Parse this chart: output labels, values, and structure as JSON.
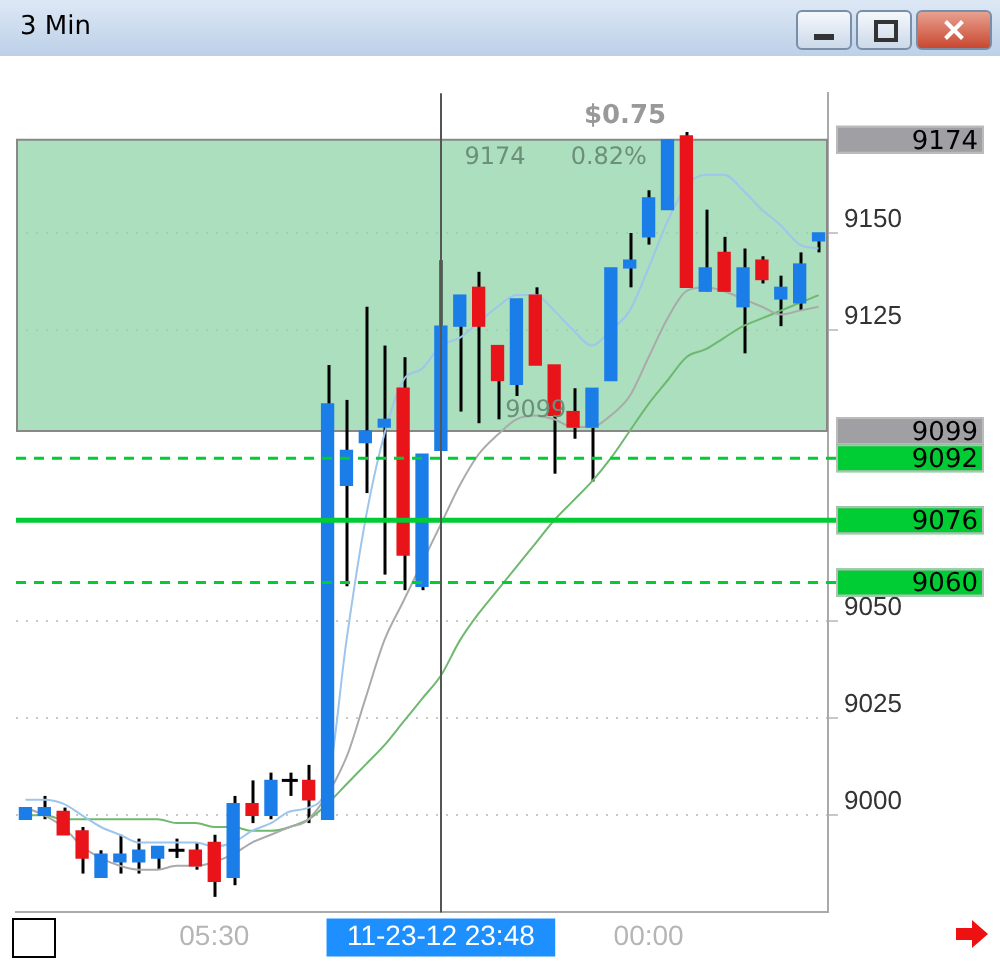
{
  "chart_data": {
    "type": "candlestick",
    "title": "3 Min",
    "categories": [
      null,
      null,
      null,
      null,
      null,
      null,
      null,
      null,
      null,
      null,
      "05:30",
      null,
      null,
      null,
      null,
      null,
      null,
      null,
      null,
      null,
      null,
      null,
      "11-23-12 23:48",
      null,
      null,
      null,
      null,
      null,
      null,
      null,
      null,
      null,
      null,
      "00:00",
      null,
      null,
      null,
      null,
      null,
      null,
      null,
      null,
      null
    ],
    "ohlc": [
      [
        8999,
        9002,
        8999,
        9002
      ],
      [
        9000,
        9005,
        8999,
        9002
      ],
      [
        9001,
        9002,
        8995,
        8995
      ],
      [
        8996,
        8997,
        8985,
        8989
      ],
      [
        8984,
        8991,
        8984,
        8990
      ],
      [
        8988,
        8995,
        8985,
        8990
      ],
      [
        8988,
        8994,
        8985,
        8991
      ],
      [
        8989,
        8992,
        8986,
        8992
      ],
      [
        8991,
        8994,
        8989,
        8991
      ],
      [
        8991,
        8993,
        8986,
        8987
      ],
      [
        8993,
        8995,
        8979,
        8983
      ],
      [
        8984,
        9005,
        8982,
        9003
      ],
      [
        9003,
        9009,
        8998,
        9000
      ],
      [
        9000,
        9011,
        8999,
        9009
      ],
      [
        9009,
        9011,
        9005,
        9009
      ],
      [
        9009,
        9013,
        8998,
        9004
      ],
      [
        8999,
        9116,
        8999,
        9106
      ],
      [
        9085,
        9107,
        9059,
        9094
      ],
      [
        9096,
        9131,
        9083,
        9099
      ],
      [
        9100,
        9121,
        9062,
        9102
      ],
      [
        9110,
        9118,
        9058,
        9067
      ],
      [
        9059,
        9093,
        9058,
        9093
      ],
      [
        9094,
        9143,
        9094,
        9126
      ],
      [
        9126,
        9134,
        9104,
        9134
      ],
      [
        9136,
        9140,
        9101,
        9126
      ],
      [
        9121,
        9121,
        9102,
        9112
      ],
      [
        9111,
        9133,
        9108,
        9133
      ],
      [
        9134,
        9136,
        9116,
        9116
      ],
      [
        9116,
        9116,
        9088,
        9103
      ],
      [
        9104,
        9110,
        9097,
        9100
      ],
      [
        9100,
        9110,
        9086,
        9110
      ],
      [
        9112,
        9141,
        9112,
        9141
      ],
      [
        9141,
        9150,
        9136,
        9143
      ],
      [
        9149,
        9161,
        9147,
        9159
      ],
      [
        9156,
        9174,
        9156,
        9174
      ],
      [
        9175,
        9176,
        9136,
        9136
      ],
      [
        9135,
        9156,
        9135,
        9141
      ],
      [
        9145,
        9149,
        9135,
        9135
      ],
      [
        9131,
        9146,
        9119,
        9141
      ],
      [
        9143,
        9144,
        9137,
        9138
      ],
      [
        9133,
        9139,
        9126,
        9136
      ],
      [
        9132,
        9145,
        9130,
        9142
      ],
      [
        9148,
        9150,
        9145,
        9150
      ]
    ],
    "colors": [
      "#1a7de8",
      "#1a7de8",
      "#e8141a",
      "#e8141a",
      "#1a7de8",
      "#1a7de8",
      "#1a7de8",
      "#1a7de8",
      "#000000",
      "#e8141a",
      "#e8141a",
      "#1a7de8",
      "#e8141a",
      "#1a7de8",
      "#000000",
      "#e8141a",
      "#1a7de8",
      "#1a7de8",
      "#1a7de8",
      "#1a7de8",
      "#e8141a",
      "#1a7de8",
      "#1a7de8",
      "#1a7de8",
      "#e8141a",
      "#e8141a",
      "#1a7de8",
      "#e8141a",
      "#e8141a",
      "#e8141a",
      "#1a7de8",
      "#1a7de8",
      "#1a7de8",
      "#1a7de8",
      "#1a7de8",
      "#e8141a",
      "#1a7de8",
      "#e8141a",
      "#1a7de8",
      "#e8141a",
      "#1a7de8",
      "#1a7de8",
      "#1a7de8"
    ],
    "series": [
      {
        "type": "line",
        "color": "#9ec5ec",
        "values": [
          9004,
          9004,
          9003,
          9000,
          8997,
          8995,
          8993,
          8993,
          8993,
          8993,
          8992,
          8993,
          8996,
          8998,
          9001,
          9002,
          9008,
          9045,
          9076,
          9098,
          9112,
          9115,
          9121,
          9123,
          9127,
          9131,
          9134,
          9134,
          9130,
          9125,
          9121,
          9125,
          9130,
          9141,
          9153,
          9162,
          9165,
          9165,
          9161,
          9156,
          9152,
          9147,
          9146
        ]
      },
      {
        "type": "line",
        "color": "#aaaaaa",
        "values": [
          9002,
          9000,
          8997,
          8992,
          8989,
          8987,
          8986,
          8986,
          8987,
          8987,
          8988,
          8990,
          8993,
          8995,
          8997,
          8999,
          null,
          9015,
          9030,
          9045,
          9055,
          null,
          9075,
          9085,
          9093,
          9098,
          9102,
          9103,
          9102,
          9100,
          9100,
          9103,
          9108,
          9118,
          9128,
          9135,
          9136,
          9135,
          9133,
          9131,
          9129,
          9130,
          9131
        ]
      },
      {
        "type": "line",
        "color": "#6fb86f",
        "values": [
          9000,
          9000,
          8999,
          8999,
          8999,
          8999,
          8999,
          8999,
          8998,
          8998,
          8997,
          8997,
          8996,
          8996,
          8997,
          8999,
          9003,
          9008,
          9013,
          9018,
          9024,
          9030,
          9036,
          9045,
          9052,
          9058,
          9064,
          9070,
          9076,
          9081,
          9086,
          9092,
          9099,
          9106,
          9112,
          9118,
          9120,
          9123,
          9126,
          9128,
          9130,
          9132,
          9134
        ]
      }
    ],
    "ylim": [
      8975,
      9186
    ],
    "yticks": [
      9000,
      9025,
      9050,
      9125,
      9150
    ],
    "grid": "y",
    "legend": false,
    "ref_lines": [
      {
        "axis": "y",
        "value": 9092,
        "label": "9092",
        "color": "#00cc33",
        "line_style": "dashed"
      },
      {
        "axis": "y",
        "value": 9076,
        "label": "9076",
        "color": "#00cc33",
        "line_style": "solid"
      },
      {
        "axis": "y",
        "value": 9060,
        "label": "9060",
        "color": "#00cc33",
        "line_style": "dashed"
      },
      {
        "axis": "x",
        "value": "11-23-12 23:48",
        "color": "#555555",
        "line_style": "solid"
      }
    ],
    "bands": [
      {
        "axis": "y",
        "from": 9099,
        "to": 9174,
        "color": "#8fd4a8"
      }
    ],
    "annotations": [
      "$0.75",
      "9174",
      "0.82%",
      "9099"
    ]
  }
}
